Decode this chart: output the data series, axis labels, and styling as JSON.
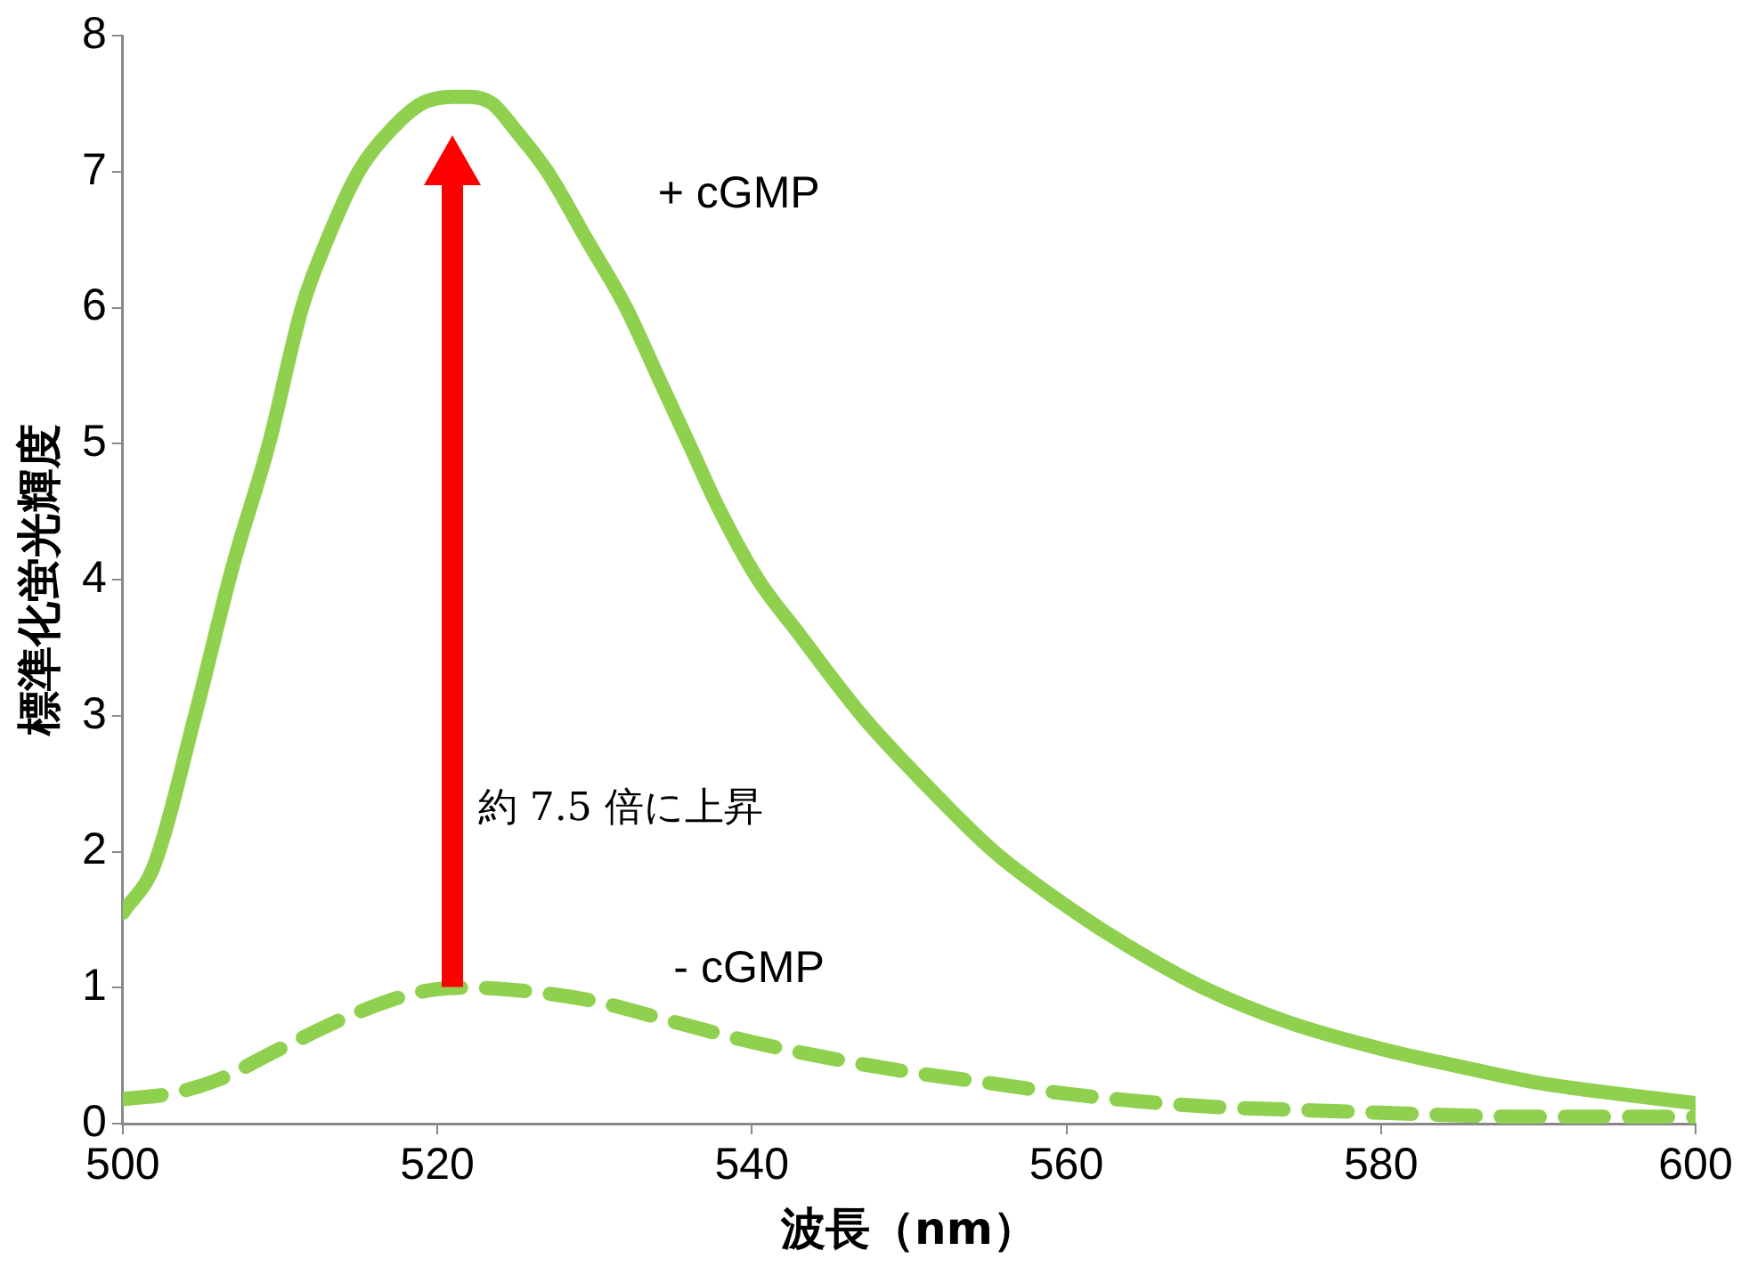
{
  "chart_data": {
    "type": "line",
    "xlabel": "波長（nm）",
    "ylabel": "標準化蛍光輝度",
    "xlim": [
      500,
      600
    ],
    "xticks": [
      500,
      520,
      540,
      560,
      580,
      600
    ],
    "ylim": [
      0,
      8
    ],
    "yticks": [
      0,
      1,
      2,
      3,
      4,
      5,
      6,
      7,
      8
    ],
    "grid": false,
    "legend": false,
    "marker": "none",
    "annotations": [
      "約 7.5 倍に上昇"
    ],
    "series": [
      {
        "name": "+ cGMP",
        "color": "#8fd14f",
        "line_style": "solid",
        "x": [
          500,
          502,
          504.6,
          507,
          509.3,
          511.4,
          513,
          515,
          517,
          519,
          521,
          522,
          523.5,
          525,
          527,
          529.5,
          532,
          534,
          536,
          538,
          540.4,
          543,
          547,
          551,
          555.4,
          560,
          564,
          568.7,
          574,
          580,
          585,
          590,
          595,
          600
        ],
        "values": [
          1.55,
          1.9,
          3.0,
          4.1,
          5.0,
          6.0,
          6.5,
          7.0,
          7.3,
          7.5,
          7.55,
          7.55,
          7.5,
          7.3,
          7.0,
          6.5,
          6.0,
          5.5,
          5.0,
          4.5,
          4.0,
          3.6,
          3.0,
          2.5,
          2.0,
          1.6,
          1.3,
          1.0,
          0.75,
          0.55,
          0.42,
          0.3,
          0.22,
          0.15
        ]
      },
      {
        "name": "- cGMP",
        "color": "#8fd14f",
        "line_style": "dashed",
        "x": [
          500,
          503,
          506,
          510,
          515,
          519,
          522,
          526,
          530,
          535,
          540,
          545,
          550,
          555,
          560,
          565,
          570,
          575,
          580,
          585,
          590,
          595,
          600
        ],
        "values": [
          0.18,
          0.22,
          0.32,
          0.55,
          0.82,
          0.97,
          1.0,
          0.97,
          0.9,
          0.75,
          0.6,
          0.48,
          0.38,
          0.3,
          0.22,
          0.16,
          0.12,
          0.1,
          0.08,
          0.06,
          0.05,
          0.05,
          0.05
        ]
      }
    ]
  }
}
